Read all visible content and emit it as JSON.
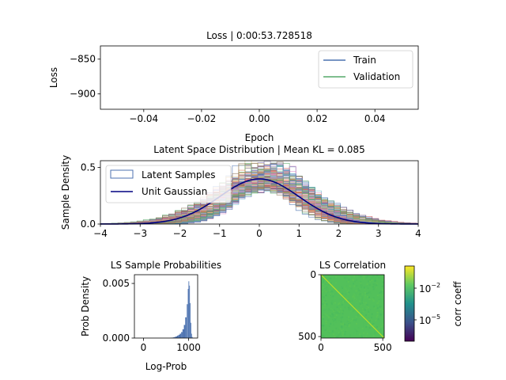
{
  "chart_data": [
    {
      "type": "line",
      "title": "Loss | 0:00:53.728518",
      "xlabel": "Epoch",
      "ylabel": "Loss",
      "xlim": [
        -0.055,
        0.055
      ],
      "ylim": [
        -922,
        -831
      ],
      "xticks": [
        "−0.04",
        "−0.02",
        "0.00",
        "0.02",
        "0.04"
      ],
      "yticks": [
        "−850",
        "−900"
      ],
      "legend": "top-right",
      "series": [
        {
          "name": "Train",
          "color": "#4c72b0",
          "x": [],
          "y": []
        },
        {
          "name": "Validation",
          "color": "#55a868",
          "x": [],
          "y": []
        }
      ]
    },
    {
      "type": "area",
      "title": "Latent Space Distribution | Mean KL = 0.085",
      "xlabel": "",
      "ylabel": "Sample Density",
      "xlim": [
        -4,
        4
      ],
      "ylim": [
        0,
        0.56
      ],
      "xticks": [
        "−4",
        "−3",
        "−2",
        "−1",
        "0",
        "1",
        "2",
        "3",
        "4"
      ],
      "yticks": [
        "0.0",
        "0.5"
      ],
      "legend": "top-left",
      "series": [
        {
          "name": "Latent Samples",
          "color": "#4c72b0",
          "kind": "step-histogram",
          "peak_range": [
            0.31,
            0.52
          ],
          "center_range": [
            -0.3,
            0.6
          ]
        },
        {
          "name": "Unit Gaussian",
          "color": "#000080",
          "kind": "line",
          "mean": 0,
          "std": 1
        }
      ]
    },
    {
      "type": "bar",
      "title": "LS Sample Probabilities",
      "xlabel": "Log-Prob",
      "ylabel": "Prob Density",
      "xlim": [
        -200,
        1200
      ],
      "ylim": [
        0,
        0.0058
      ],
      "xticks": [
        "0",
        "1000"
      ],
      "yticks": [
        "0.000",
        "0.005"
      ],
      "color": "#4c72b0",
      "bins": [
        {
          "x": 610,
          "y": 2e-05
        },
        {
          "x": 640,
          "y": 4e-05
        },
        {
          "x": 670,
          "y": 6e-05
        },
        {
          "x": 700,
          "y": 0.0001
        },
        {
          "x": 730,
          "y": 0.00015
        },
        {
          "x": 760,
          "y": 0.00022
        },
        {
          "x": 790,
          "y": 0.0003
        },
        {
          "x": 820,
          "y": 0.0004
        },
        {
          "x": 850,
          "y": 0.00055
        },
        {
          "x": 880,
          "y": 0.0008
        },
        {
          "x": 910,
          "y": 0.0012
        },
        {
          "x": 940,
          "y": 0.0019
        },
        {
          "x": 970,
          "y": 0.0031
        },
        {
          "x": 990,
          "y": 0.0045
        },
        {
          "x": 1005,
          "y": 0.0052
        },
        {
          "x": 1020,
          "y": 0.0048
        },
        {
          "x": 1035,
          "y": 0.0032
        },
        {
          "x": 1050,
          "y": 0.0014
        },
        {
          "x": 1065,
          "y": 0.0004
        },
        {
          "x": 1080,
          "y": 0.0001
        }
      ]
    },
    {
      "type": "heatmap",
      "title": "LS Correlation",
      "xlim": [
        0,
        512
      ],
      "ylim": [
        512,
        0
      ],
      "xticks": [
        "0",
        "500"
      ],
      "yticks": [
        "0",
        "500"
      ],
      "colormap": "viridis",
      "colorbar_label": "corr coeff",
      "colorbar_ticks": [
        "10",
        "10"
      ],
      "colorbar_exponents": [
        "−2",
        "−5"
      ],
      "background_color": "#52c05a",
      "diagonal_color": "#bddf26"
    }
  ]
}
